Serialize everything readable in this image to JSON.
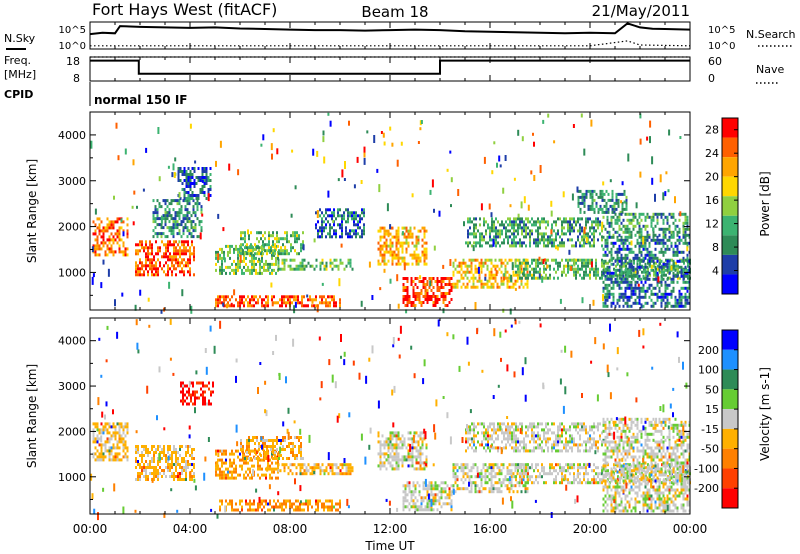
{
  "header": {
    "station": "Fort Hays West (fitACF)",
    "beam": "Beam 18",
    "date": "21/May/2011"
  },
  "panels": {
    "nsky": {
      "label": "N.Sky",
      "ticks": [
        "10^5",
        "10^0"
      ],
      "right_label": "N.Search",
      "right_ticks": [
        "10^5",
        "10^0"
      ]
    },
    "freq": {
      "label_line1": "Freq.",
      "label_line2": "[MHz]",
      "ticks": [
        "18",
        "8"
      ],
      "right_label": "Nave",
      "right_ticks": [
        "60",
        "0"
      ]
    },
    "cpid": {
      "label": "CPID",
      "value": "normal 150 IF"
    }
  },
  "time_axis": {
    "label": "Time UT",
    "ticks": [
      "00:00",
      "04:00",
      "08:00",
      "12:00",
      "16:00",
      "20:00",
      "00:00"
    ]
  },
  "chart_data": [
    {
      "type": "line",
      "name": "nsky-nsearch",
      "x_range_hours": [
        0,
        24
      ],
      "series": [
        {
          "name": "N.Sky",
          "style": "solid",
          "x": [
            0,
            0.5,
            1.0,
            1.2,
            2.0,
            3.0,
            4.0,
            5.0,
            6.0,
            7.0,
            8.0,
            9.0,
            10.0,
            11.0,
            12.0,
            13.0,
            14.0,
            15.0,
            16.0,
            17.0,
            18.0,
            19.0,
            20.0,
            21.0,
            21.5,
            22.0,
            22.5,
            23.0,
            24.0
          ],
          "values": [
            0.55,
            0.6,
            0.58,
            0.85,
            0.82,
            0.8,
            0.78,
            0.8,
            0.76,
            0.74,
            0.72,
            0.7,
            0.7,
            0.68,
            0.7,
            0.72,
            0.7,
            0.66,
            0.64,
            0.62,
            0.6,
            0.58,
            0.6,
            0.58,
            0.95,
            0.8,
            0.75,
            0.74,
            0.72
          ],
          "ylim": [
            0,
            1
          ]
        },
        {
          "name": "N.Search",
          "style": "dotted",
          "x": [
            0,
            4,
            8,
            12,
            16,
            20,
            21.5,
            22,
            24
          ],
          "values": [
            0.12,
            0.12,
            0.12,
            0.12,
            0.12,
            0.12,
            0.3,
            0.15,
            0.12
          ],
          "ylim": [
            0,
            1
          ]
        }
      ]
    },
    {
      "type": "line",
      "name": "freq-nave",
      "x_range_hours": [
        0,
        24
      ],
      "series": [
        {
          "name": "Freq.",
          "style": "solid",
          "x": [
            0,
            1.95,
            1.95,
            14.0,
            14.0,
            24.0
          ],
          "values": [
            16.5,
            16.5,
            11.0,
            11.0,
            16.5,
            16.5
          ],
          "ylim": [
            8,
            18
          ]
        },
        {
          "name": "Nave",
          "style": "dotted",
          "x": [
            0,
            24
          ],
          "values": [
            60,
            60
          ],
          "ylim": [
            0,
            60
          ]
        }
      ]
    },
    {
      "type": "heatmap",
      "name": "power",
      "title": "",
      "xlabel": "",
      "ylabel": "Slant Range [km]",
      "x_range_hours": [
        0,
        24
      ],
      "ylim": [
        180,
        4500
      ],
      "y_ticks": [
        1000,
        2000,
        3000,
        4000
      ],
      "colorbar": {
        "label": "Power [dB]",
        "ticks": [
          4,
          8,
          12,
          16,
          20,
          24,
          28
        ],
        "range": [
          0,
          30
        ],
        "colors": [
          "#0000ff",
          "#1e3ea8",
          "#2e8b57",
          "#3cb371",
          "#90d040",
          "#ffd700",
          "#ffa500",
          "#ff6000",
          "#ff0000"
        ]
      },
      "echo_regions": [
        {
          "x0": 0.1,
          "x1": 1.5,
          "y0": 1400,
          "y1": 2200,
          "level": 0.8
        },
        {
          "x0": 1.8,
          "x1": 4.2,
          "y0": 950,
          "y1": 1700,
          "level": 0.85
        },
        {
          "x0": 2.5,
          "x1": 4.5,
          "y0": 1800,
          "y1": 2600,
          "level": 0.3
        },
        {
          "x0": 3.5,
          "x1": 4.8,
          "y0": 2600,
          "y1": 3300,
          "level": 0.2
        },
        {
          "x0": 5.0,
          "x1": 7.5,
          "y0": 1000,
          "y1": 1600,
          "level": 0.45
        },
        {
          "x0": 6.0,
          "x1": 8.5,
          "y0": 1400,
          "y1": 1900,
          "level": 0.4
        },
        {
          "x0": 7.5,
          "x1": 10.5,
          "y0": 1100,
          "y1": 1300,
          "level": 0.4
        },
        {
          "x0": 5.0,
          "x1": 10.0,
          "y0": 250,
          "y1": 500,
          "level": 0.85
        },
        {
          "x0": 9.0,
          "x1": 11.0,
          "y0": 1800,
          "y1": 2400,
          "level": 0.2
        },
        {
          "x0": 11.5,
          "x1": 13.5,
          "y0": 1200,
          "y1": 2000,
          "level": 0.7
        },
        {
          "x0": 12.5,
          "x1": 14.5,
          "y0": 300,
          "y1": 900,
          "level": 0.9
        },
        {
          "x0": 14.5,
          "x1": 17.5,
          "y0": 700,
          "y1": 1300,
          "level": 0.65
        },
        {
          "x0": 15.0,
          "x1": 20.5,
          "y0": 1600,
          "y1": 2200,
          "level": 0.35
        },
        {
          "x0": 17.0,
          "x1": 24.0,
          "y0": 900,
          "y1": 1300,
          "level": 0.4
        },
        {
          "x0": 19.5,
          "x1": 21.5,
          "y0": 2300,
          "y1": 2800,
          "level": 0.3
        },
        {
          "x0": 20.5,
          "x1": 24.0,
          "y0": 1800,
          "y1": 2300,
          "level": 0.35
        },
        {
          "x0": 20.5,
          "x1": 24.0,
          "y0": 250,
          "y1": 1800,
          "level": 0.25
        }
      ]
    },
    {
      "type": "heatmap",
      "name": "velocity",
      "title": "",
      "xlabel": "Time UT",
      "ylabel": "Slant Range [km]",
      "x_range_hours": [
        0,
        24
      ],
      "ylim": [
        180,
        4500
      ],
      "y_ticks": [
        1000,
        2000,
        3000,
        4000
      ],
      "colorbar": {
        "label": "Velocity [m s-1]",
        "ticks": [
          200,
          100,
          50,
          15,
          -15,
          -50,
          -100,
          -200
        ],
        "colors": [
          "#0000ff",
          "#1e90ff",
          "#2e8b57",
          "#66cc33",
          "#c8c8c8",
          "#ffb000",
          "#ff8000",
          "#ff4000",
          "#ff0000"
        ]
      },
      "echo_regions": [
        {
          "x0": 0.1,
          "x1": 1.5,
          "y0": 1400,
          "y1": 2200,
          "level": 0.58
        },
        {
          "x0": 1.8,
          "x1": 4.2,
          "y0": 950,
          "y1": 1700,
          "level": 0.6
        },
        {
          "x0": 3.6,
          "x1": 4.9,
          "y0": 2600,
          "y1": 3100,
          "level": 0.95
        },
        {
          "x0": 5.0,
          "x1": 7.5,
          "y0": 1000,
          "y1": 1600,
          "level": 0.65
        },
        {
          "x0": 6.0,
          "x1": 8.5,
          "y0": 1400,
          "y1": 1900,
          "level": 0.62
        },
        {
          "x0": 7.5,
          "x1": 10.5,
          "y0": 1100,
          "y1": 1300,
          "level": 0.6
        },
        {
          "x0": 5.0,
          "x1": 10.0,
          "y0": 250,
          "y1": 500,
          "level": 0.7
        },
        {
          "x0": 11.5,
          "x1": 13.5,
          "y0": 1200,
          "y1": 2000,
          "level": 0.5
        },
        {
          "x0": 12.5,
          "x1": 14.5,
          "y0": 300,
          "y1": 900,
          "level": 0.5
        },
        {
          "x0": 14.5,
          "x1": 17.5,
          "y0": 700,
          "y1": 1300,
          "level": 0.5
        },
        {
          "x0": 15.0,
          "x1": 20.5,
          "y0": 1600,
          "y1": 2200,
          "level": 0.5
        },
        {
          "x0": 17.0,
          "x1": 24.0,
          "y0": 900,
          "y1": 1300,
          "level": 0.5
        },
        {
          "x0": 20.5,
          "x1": 24.0,
          "y0": 1800,
          "y1": 2300,
          "level": 0.5
        },
        {
          "x0": 20.5,
          "x1": 24.0,
          "y0": 250,
          "y1": 1800,
          "level": 0.5
        }
      ]
    }
  ]
}
